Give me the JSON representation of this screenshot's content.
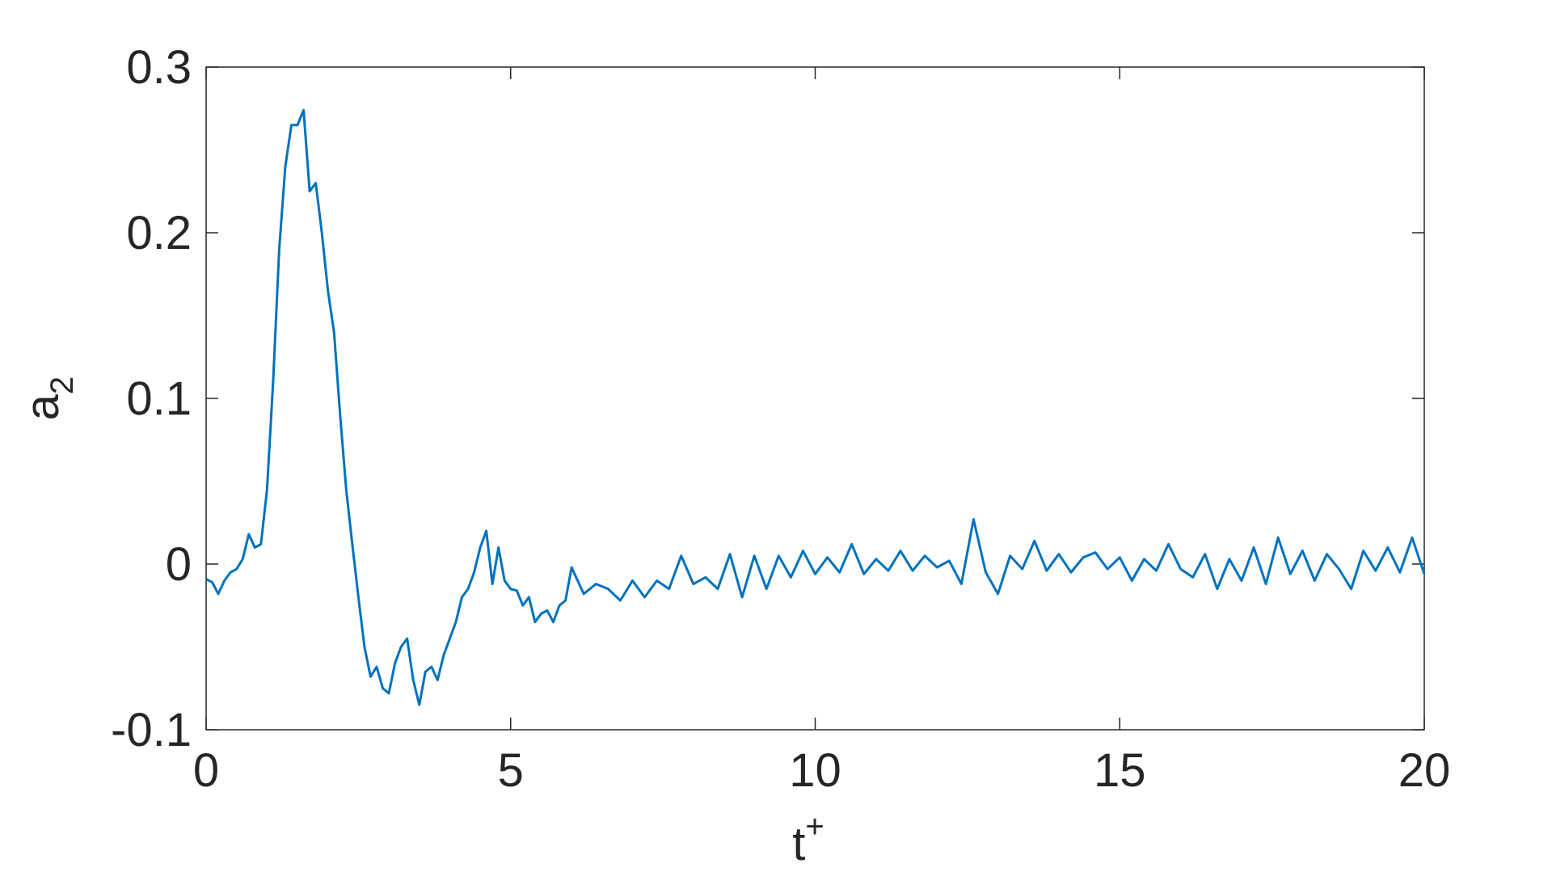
{
  "chart_data": {
    "type": "line",
    "xlabel": "t",
    "xlabel_superscript": "+",
    "ylabel": "a",
    "ylabel_subscript": "2",
    "xlim": [
      0,
      20
    ],
    "xticks": [
      0,
      5,
      10,
      15,
      20
    ],
    "ylim": [
      -0.1,
      0.3
    ],
    "yticks": [
      -0.1,
      0,
      0.1,
      0.2,
      0.3
    ],
    "box": true,
    "series": [
      {
        "color": "#0072bd",
        "x": [
          0,
          0.1,
          0.2,
          0.3,
          0.4,
          0.5,
          0.6,
          0.7,
          0.8,
          0.9,
          1.0,
          1.1,
          1.2,
          1.3,
          1.4,
          1.5,
          1.6,
          1.7,
          1.8,
          1.9,
          2.0,
          2.1,
          2.2,
          2.3,
          2.4,
          2.5,
          2.6,
          2.7,
          2.8,
          2.9,
          3.0,
          3.1,
          3.2,
          3.3,
          3.4,
          3.5,
          3.6,
          3.7,
          3.8,
          3.9,
          4.0,
          4.1,
          4.2,
          4.3,
          4.4,
          4.5,
          4.6,
          4.7,
          4.8,
          4.9,
          5.0,
          5.1,
          5.2,
          5.3,
          5.4,
          5.5,
          5.6,
          5.7,
          5.8,
          5.9,
          6.0,
          6.2,
          6.4,
          6.6,
          6.8,
          7.0,
          7.2,
          7.4,
          7.6,
          7.8,
          8.0,
          8.2,
          8.4,
          8.6,
          8.8,
          9.0,
          9.2,
          9.4,
          9.6,
          9.8,
          10.0,
          10.2,
          10.4,
          10.6,
          10.8,
          11.0,
          11.2,
          11.4,
          11.6,
          11.8,
          12.0,
          12.2,
          12.4,
          12.6,
          12.8,
          13.0,
          13.2,
          13.4,
          13.6,
          13.8,
          14.0,
          14.2,
          14.4,
          14.6,
          14.8,
          15.0,
          15.2,
          15.4,
          15.6,
          15.8,
          16.0,
          16.2,
          16.4,
          16.6,
          16.8,
          17.0,
          17.2,
          17.4,
          17.6,
          17.8,
          18.0,
          18.2,
          18.4,
          18.6,
          18.8,
          19.0,
          19.2,
          19.4,
          19.6,
          19.8,
          20.0
        ],
        "values": [
          -0.009,
          -0.011,
          -0.018,
          -0.01,
          -0.005,
          -0.003,
          0.003,
          0.018,
          0.01,
          0.012,
          0.045,
          0.11,
          0.19,
          0.24,
          0.265,
          0.265,
          0.274,
          0.225,
          0.23,
          0.2,
          0.165,
          0.14,
          0.09,
          0.045,
          0.012,
          -0.02,
          -0.05,
          -0.068,
          -0.062,
          -0.075,
          -0.078,
          -0.06,
          -0.05,
          -0.045,
          -0.07,
          -0.085,
          -0.065,
          -0.062,
          -0.07,
          -0.055,
          -0.045,
          -0.035,
          -0.02,
          -0.015,
          -0.005,
          0.01,
          0.02,
          -0.012,
          0.01,
          -0.01,
          -0.015,
          -0.016,
          -0.025,
          -0.02,
          -0.035,
          -0.03,
          -0.028,
          -0.035,
          -0.025,
          -0.022,
          -0.002,
          -0.018,
          -0.012,
          -0.015,
          -0.022,
          -0.01,
          -0.02,
          -0.01,
          -0.015,
          0.005,
          -0.012,
          -0.008,
          -0.015,
          0.006,
          -0.02,
          0.005,
          -0.015,
          0.005,
          -0.008,
          0.008,
          -0.006,
          0.004,
          -0.005,
          0.012,
          -0.006,
          0.003,
          -0.004,
          0.008,
          -0.004,
          0.005,
          -0.002,
          0.002,
          -0.012,
          0.027,
          -0.005,
          -0.018,
          0.005,
          -0.003,
          0.014,
          -0.004,
          0.006,
          -0.005,
          0.004,
          0.007,
          -0.003,
          0.004,
          -0.01,
          0.003,
          -0.004,
          0.012,
          -0.003,
          -0.008,
          0.006,
          -0.015,
          0.003,
          -0.01,
          0.01,
          -0.012,
          0.016,
          -0.006,
          0.008,
          -0.01,
          0.006,
          -0.003,
          -0.015,
          0.008,
          -0.004,
          0.01,
          -0.005,
          0.016,
          -0.006
        ]
      }
    ]
  }
}
